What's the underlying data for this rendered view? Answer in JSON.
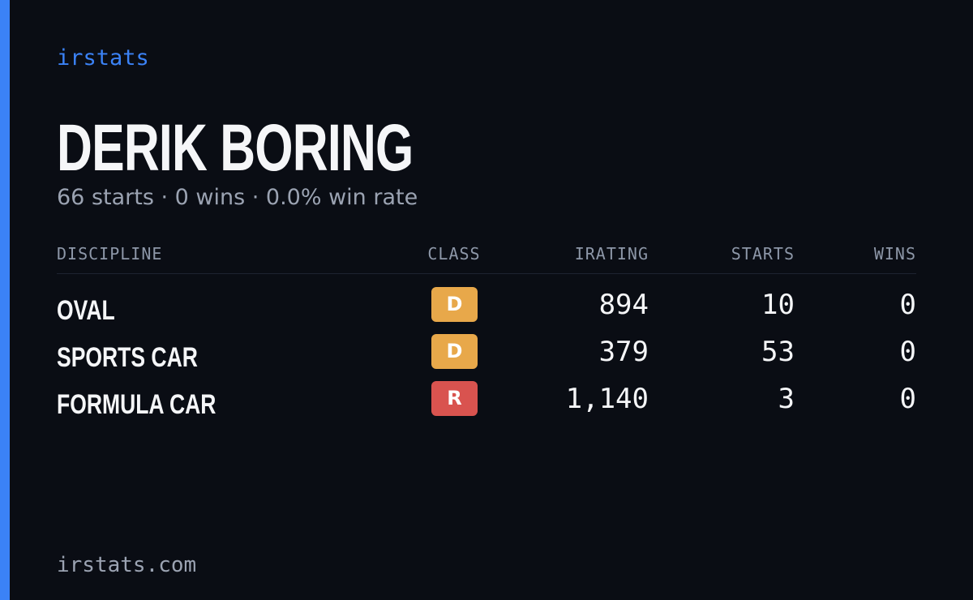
{
  "brand": "irstats",
  "name": "DERIK BORING",
  "summary": "66 starts · 0 wins · 0.0% win rate",
  "table": {
    "headers": [
      "DISCIPLINE",
      "CLASS",
      "IRATING",
      "STARTS",
      "WINS"
    ],
    "rows": [
      [
        "OVAL",
        "D",
        "894",
        "10",
        "0"
      ],
      [
        "SPORTS CAR",
        "D",
        "379",
        "53",
        "0"
      ],
      [
        "FORMULA CAR",
        "R",
        "1,140",
        "3",
        "0"
      ]
    ]
  },
  "footer": "irstats.com"
}
